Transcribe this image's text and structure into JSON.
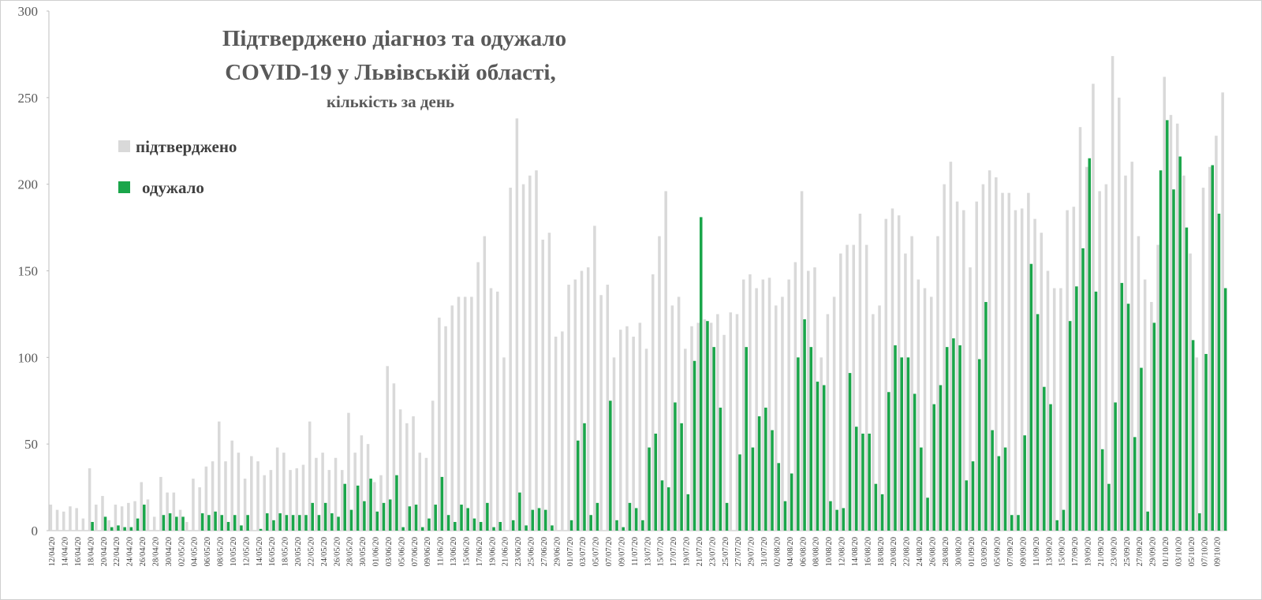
{
  "chart_data": {
    "type": "bar",
    "title": [
      "Підтверджено діагноз та одужало",
      "COVID-19 у Львівській області,"
    ],
    "subtitle": "кількість за день",
    "legend": "upper left",
    "ylim": [
      0,
      300
    ],
    "yticks": [
      0,
      50,
      100,
      150,
      200,
      250,
      300
    ],
    "categories": [
      "12/04/20",
      null,
      "14/04/20",
      null,
      "16/04/20",
      null,
      "18/04/20",
      null,
      "20/04/20",
      null,
      "22/04/20",
      null,
      "24/04/20",
      null,
      "26/04/20",
      null,
      "28/04/20",
      null,
      "30/04/20",
      null,
      "02/05/20",
      null,
      "04/05/20",
      null,
      "06/05/20",
      null,
      "08/05/20",
      null,
      "10/05/20",
      null,
      "12/05/20",
      null,
      "14/05/20",
      null,
      "16/05/20",
      null,
      "18/05/20",
      null,
      "20/05/20",
      null,
      "22/05/20",
      null,
      "24/05/20",
      null,
      "26/05/20",
      null,
      "28/05/20",
      null,
      "30/05/20",
      null,
      "01/06/20",
      null,
      "03/06/20",
      null,
      "05/06/20",
      null,
      "07/06/20",
      null,
      "09/06/20",
      null,
      "11/06/20",
      null,
      "13/06/20",
      null,
      "15/06/20",
      null,
      "17/06/20",
      null,
      "19/06/20",
      null,
      "21/06/20",
      null,
      "23/06/20",
      null,
      "25/06/20",
      null,
      "27/06/20",
      null,
      "29/06/20",
      null,
      "01/07/20",
      null,
      "03/07/20",
      null,
      "05/07/20",
      null,
      "07/07/20",
      null,
      "09/07/20",
      null,
      "11/07/20",
      null,
      "13/07/20",
      null,
      "15/07/20",
      null,
      "17/07/20",
      null,
      "19/07/20",
      null,
      "21/07/20",
      null,
      "23/07/20",
      null,
      "25/07/20",
      null,
      "27/07/20",
      null,
      "29/07/20",
      null,
      "31/07/20",
      null,
      "02/08/20",
      null,
      "04/08/20",
      null,
      "06/08/20",
      null,
      "08/08/20",
      null,
      "10/08/20",
      null,
      "12/08/20",
      null,
      "14/08/20",
      null,
      "16/08/20",
      null,
      "18/08/20",
      null,
      "20/08/20",
      null,
      "22/08/20",
      null,
      "24/08/20",
      null,
      "26/08/20",
      null,
      "28/08/20",
      null,
      "30/08/20",
      null,
      "01/09/20",
      null,
      "03/09/20",
      null,
      "05/09/20",
      null,
      "07/09/20",
      null,
      "09/09/20",
      null,
      "11/09/20",
      null,
      "13/09/20",
      null,
      "15/09/20",
      null,
      "17/09/20",
      null,
      "19/09/20",
      null,
      "21/09/20",
      null,
      "23/09/20",
      null,
      "25/09/20",
      null,
      "27/09/20",
      null,
      "29/09/20",
      null,
      "01/10/20",
      null,
      "03/10/20",
      null,
      "05/10/20",
      null,
      "07/10/20",
      null,
      "09/10/20",
      null
    ],
    "series": [
      {
        "name": "підтверджено",
        "color": "#d9d9d9",
        "values": [
          15,
          12,
          11,
          14,
          13,
          7,
          36,
          15,
          20,
          6,
          15,
          14,
          16,
          17,
          28,
          18,
          8,
          31,
          22,
          22,
          12,
          5,
          30,
          25,
          37,
          40,
          63,
          40,
          52,
          45,
          30,
          43,
          40,
          32,
          35,
          48,
          45,
          35,
          36,
          38,
          63,
          42,
          45,
          35,
          42,
          35,
          68,
          45,
          55,
          50,
          28,
          32,
          95,
          85,
          70,
          62,
          66,
          45,
          42,
          75,
          123,
          118,
          130,
          135,
          135,
          135,
          155,
          170,
          140,
          138,
          100,
          198,
          238,
          200,
          205,
          208,
          168,
          172,
          112,
          115,
          142,
          145,
          150,
          152,
          176,
          136,
          142,
          100,
          116,
          118,
          112,
          120,
          105,
          148,
          170,
          196,
          130,
          135,
          105,
          118,
          120,
          122,
          120,
          125,
          113,
          126,
          125,
          145,
          148,
          140,
          145,
          146,
          130,
          135,
          145,
          155,
          196,
          150,
          152,
          100,
          125,
          135,
          160,
          165,
          165,
          183,
          165,
          125,
          130,
          180,
          186,
          182,
          160,
          170,
          145,
          140,
          135,
          170,
          200,
          213,
          190,
          185,
          152,
          190,
          200,
          208,
          204,
          195,
          195,
          185,
          186,
          195,
          180,
          172,
          150,
          140,
          140,
          185,
          187,
          233,
          210,
          258,
          196,
          200,
          274,
          250,
          205,
          213,
          170,
          145,
          132,
          165,
          262,
          240,
          235,
          205,
          160,
          100,
          198,
          210,
          228,
          253
        ]
      },
      {
        "name": "одужало",
        "color": "#1aa64a",
        "values": [
          0,
          0,
          0,
          0,
          0,
          0,
          5,
          0,
          8,
          2,
          3,
          2,
          2,
          7,
          15,
          0,
          0,
          9,
          10,
          8,
          8,
          0,
          0,
          10,
          9,
          11,
          9,
          5,
          9,
          3,
          9,
          0,
          1,
          10,
          6,
          10,
          9,
          9,
          9,
          9,
          16,
          9,
          16,
          10,
          8,
          27,
          12,
          26,
          17,
          30,
          11,
          16,
          18,
          32,
          2,
          14,
          15,
          2,
          7,
          15,
          31,
          9,
          5,
          15,
          13,
          7,
          5,
          16,
          2,
          5,
          0,
          6,
          22,
          3,
          12,
          13,
          12,
          3,
          0,
          0,
          6,
          52,
          62,
          9,
          16,
          0,
          75,
          6,
          2,
          16,
          13,
          6,
          48,
          56,
          29,
          25,
          74,
          62,
          21,
          98,
          181,
          121,
          106,
          71,
          16,
          0,
          44,
          106,
          48,
          66,
          71,
          58,
          39,
          17,
          33,
          100,
          122,
          106,
          86,
          84,
          17,
          12,
          13,
          91,
          60,
          56,
          56,
          27,
          21,
          80,
          107,
          100,
          100,
          79,
          48,
          19,
          73,
          84,
          106,
          111,
          107,
          29,
          40,
          99,
          132,
          58,
          43,
          48,
          9,
          9,
          55,
          154,
          125,
          83,
          73,
          6,
          12,
          121,
          141,
          163,
          215,
          138,
          47,
          27,
          74,
          143,
          131,
          54,
          94,
          11,
          120,
          208,
          237,
          197,
          216,
          175,
          110,
          10,
          102,
          211,
          183,
          140
        ]
      }
    ]
  }
}
